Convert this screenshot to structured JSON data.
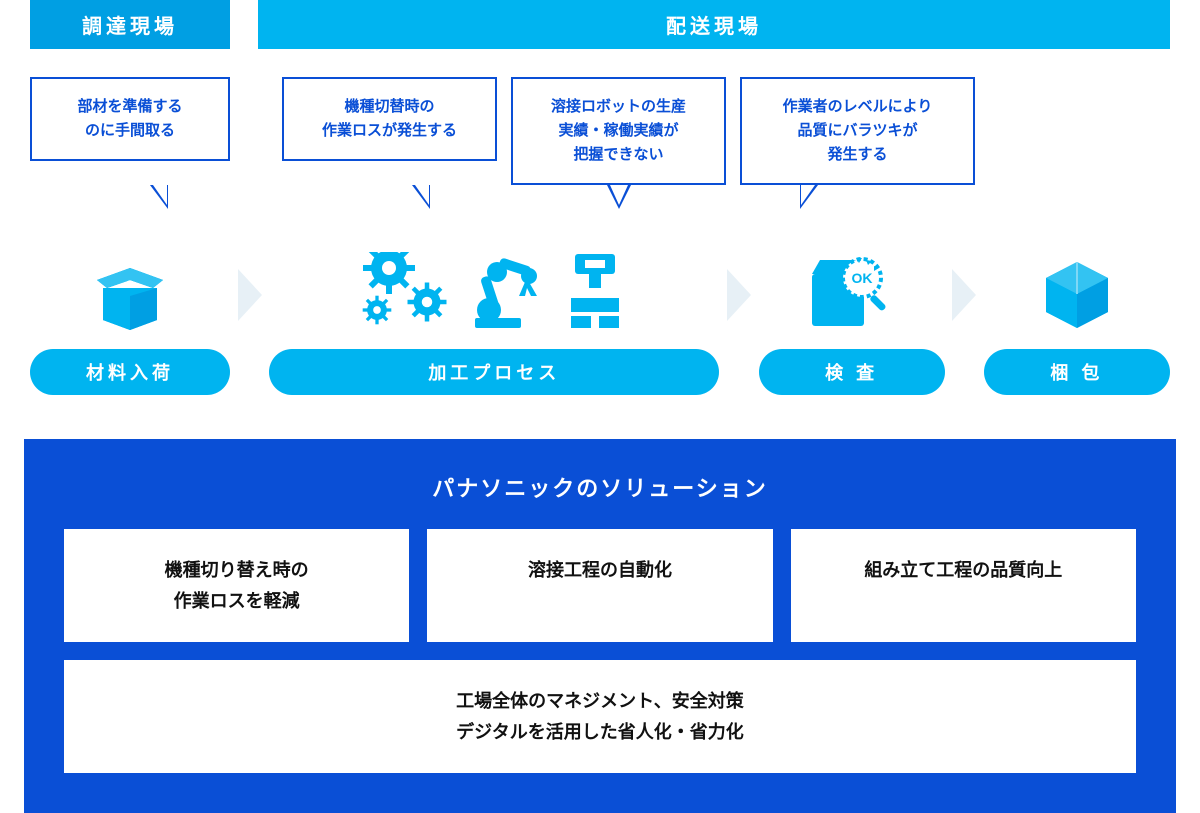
{
  "colors": {
    "header_left_bg": "#009fe3",
    "header_right_bg": "#00b4f0",
    "bubble_border": "#0a4fd6",
    "bubble_text": "#0a4fd6",
    "icon_fill": "#00b4f0",
    "arrow_fill": "#e7f0f6",
    "pill_bg": "#00b4f0",
    "solution_bg": "#0a4fd6",
    "solution_box_bg": "#ffffff",
    "page_bg": "#ffffff"
  },
  "header": {
    "left": "調達現場",
    "right": "配送現場"
  },
  "bubbles": [
    {
      "text": "部材を準備する\nのに手間取る"
    },
    {
      "text": "機種切替時の\n作業ロスが発生する"
    },
    {
      "text": "溶接ロボットの生産\n実績・稼働実績が\n把握できない"
    },
    {
      "text": "作業者のレベルにより\n品質にバラツキが\n発生する"
    }
  ],
  "process": {
    "stages": [
      {
        "id": "incoming",
        "label": "材料入荷",
        "pill_width": 200,
        "icons": [
          "open-box"
        ]
      },
      {
        "id": "machining",
        "label": "加工プロセス",
        "pill_width": 450,
        "icons": [
          "gears",
          "robot-arm",
          "clamp"
        ]
      },
      {
        "id": "inspect",
        "label": "検 査",
        "pill_width": 186,
        "icons": [
          "inspect-ok"
        ]
      },
      {
        "id": "pack",
        "label": "梱 包",
        "pill_width": 186,
        "icons": [
          "closed-box"
        ]
      }
    ]
  },
  "solution": {
    "title": "パナソニックのソリューション",
    "boxes_top": [
      "機種切り替え時の\n作業ロスを軽減",
      "溶接工程の自動化",
      "組み立て工程の品質向上"
    ],
    "box_bottom": "工場全体のマネジメント、安全対策\nデジタルを活用した省人化・省力化"
  }
}
